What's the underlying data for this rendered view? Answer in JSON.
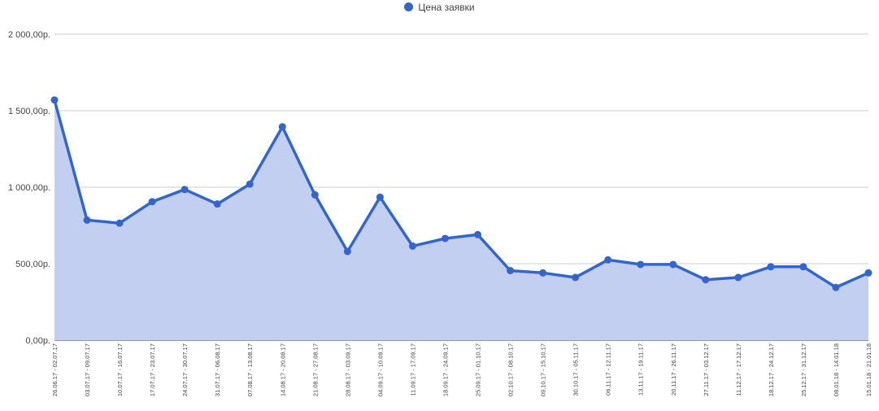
{
  "chart_data": {
    "type": "area",
    "legend_position": "top",
    "grid": true,
    "colors": {
      "line": "#3366cc",
      "area": "#c2cff0",
      "grid": "#cccccc"
    },
    "series": [
      {
        "name": "Цена заявки",
        "values": [
          1570,
          785,
          765,
          905,
          985,
          890,
          1020,
          1395,
          950,
          580,
          935,
          615,
          665,
          690,
          455,
          440,
          410,
          525,
          495,
          495,
          395,
          410,
          480,
          480,
          345,
          440
        ]
      }
    ],
    "categories": [
      "26.06.17 - 02.07.17",
      "03.07.17 - 09.07.17",
      "10.07.17 - 16.07.17",
      "17.07.17 - 23.07.17",
      "24.07.17 - 30.07.17",
      "31.07.17 - 06.08.17",
      "07.08.17 - 13.08.17",
      "14.08.17 - 20.08.17",
      "21.08.17 - 27.08.17",
      "28.08.17 - 03.09.17",
      "04.09.17 - 10.09.17",
      "11.09.17 - 17.09.17",
      "18.09.17 - 24.09.17",
      "25.09.17 - 01.10.17",
      "02.10.17 - 08.10.17",
      "09.10.17 - 15.10.17",
      "30.10.17 - 05.11.17",
      "06.11.17 - 12.11.17",
      "13.11.17 - 19.11.17",
      "20.11.17 - 26.11.17",
      "27.11.17 - 03.12.17",
      "11.12.17 - 17.12.17",
      "18.12.17 - 24.12.17",
      "25.12.17 - 31.12.17",
      "08.01.18 - 14.01.18",
      "15.01.18 - 21.01.18"
    ],
    "ylim": [
      0,
      2000
    ],
    "yticks": [
      0,
      500,
      1000,
      1500,
      2000
    ],
    "ytick_labels": [
      "0,00р.",
      "500,00р.",
      "1 000,00р.",
      "1 500,00р.",
      "2 000,00р."
    ]
  }
}
